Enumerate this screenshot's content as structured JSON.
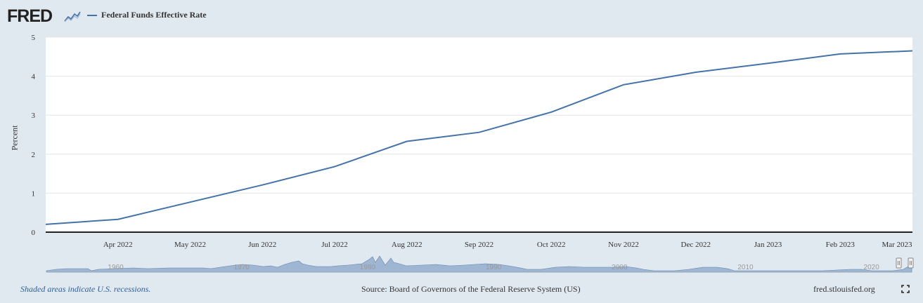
{
  "header": {
    "logo_text": "FRED",
    "legend_label": "Federal Funds Effective Rate"
  },
  "footer": {
    "recession_note": "Shaded areas indicate U.S. recessions.",
    "source": "Source: Board of Governors of the Federal Reserve System (US)",
    "site": "fred.stlouisfed.org"
  },
  "icons": {
    "logo_chart": "chart-line-icon",
    "fullscreen": "fullscreen-icon"
  },
  "colors": {
    "line": "#4572a7",
    "background": "#e1e9f0",
    "plot": "#ffffff",
    "navigator_fill": "#9fb6d2"
  },
  "chart_data": {
    "type": "line",
    "ylabel": "Percent",
    "ylim": [
      0,
      5
    ],
    "yticks": [
      0,
      1,
      2,
      3,
      4,
      5
    ],
    "xlim": [
      "2022-03",
      "2023-03"
    ],
    "xtick_labels": [
      "Apr 2022",
      "May 2022",
      "Jun 2022",
      "Jul 2022",
      "Aug 2022",
      "Sep 2022",
      "Oct 2022",
      "Nov 2022",
      "Dec 2022",
      "Jan 2023",
      "Feb 2023",
      "Mar 2023"
    ],
    "grid": true,
    "legend_position": "top-left",
    "series": [
      {
        "name": "Federal Funds Effective Rate",
        "x": [
          "2022-03",
          "2022-04",
          "2022-05",
          "2022-06",
          "2022-07",
          "2022-08",
          "2022-09",
          "2022-10",
          "2022-11",
          "2022-12",
          "2023-01",
          "2023-02",
          "2023-03"
        ],
        "y": [
          0.2,
          0.33,
          0.77,
          1.21,
          1.68,
          2.33,
          2.56,
          3.08,
          3.78,
          4.1,
          4.33,
          4.57,
          4.65
        ]
      }
    ],
    "navigator": {
      "labels": [
        "1960",
        "1970",
        "1980",
        "1990",
        "2000",
        "2010",
        "2020"
      ]
    }
  }
}
